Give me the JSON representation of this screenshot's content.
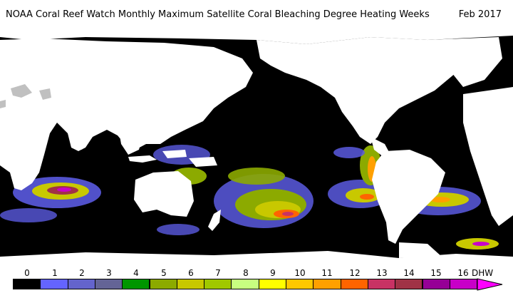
{
  "header": {
    "title": "NOAA Coral Reef Watch Monthly Maximum Satellite Coral Bleaching Degree Heating Weeks",
    "date": "Feb 2017"
  },
  "map": {
    "ocean_color": "#000000",
    "land_color": "#ffffff",
    "no_data_color": "#c0c0c0"
  },
  "legend": {
    "unit": "DHW",
    "labels": [
      "0",
      "1",
      "2",
      "3",
      "4",
      "5",
      "6",
      "7",
      "8",
      "9",
      "10",
      "11",
      "12",
      "13",
      "14",
      "15",
      "16"
    ],
    "colors": [
      "#000000",
      "#6464ff",
      "#6464cc",
      "#646496",
      "#009600",
      "#8caa00",
      "#c8c800",
      "#a0c800",
      "#c8ff80",
      "#ffff00",
      "#ffc800",
      "#ffa000",
      "#ff6400",
      "#c83264",
      "#a03246",
      "#960096",
      "#c800c8",
      "#ff00ff"
    ]
  }
}
